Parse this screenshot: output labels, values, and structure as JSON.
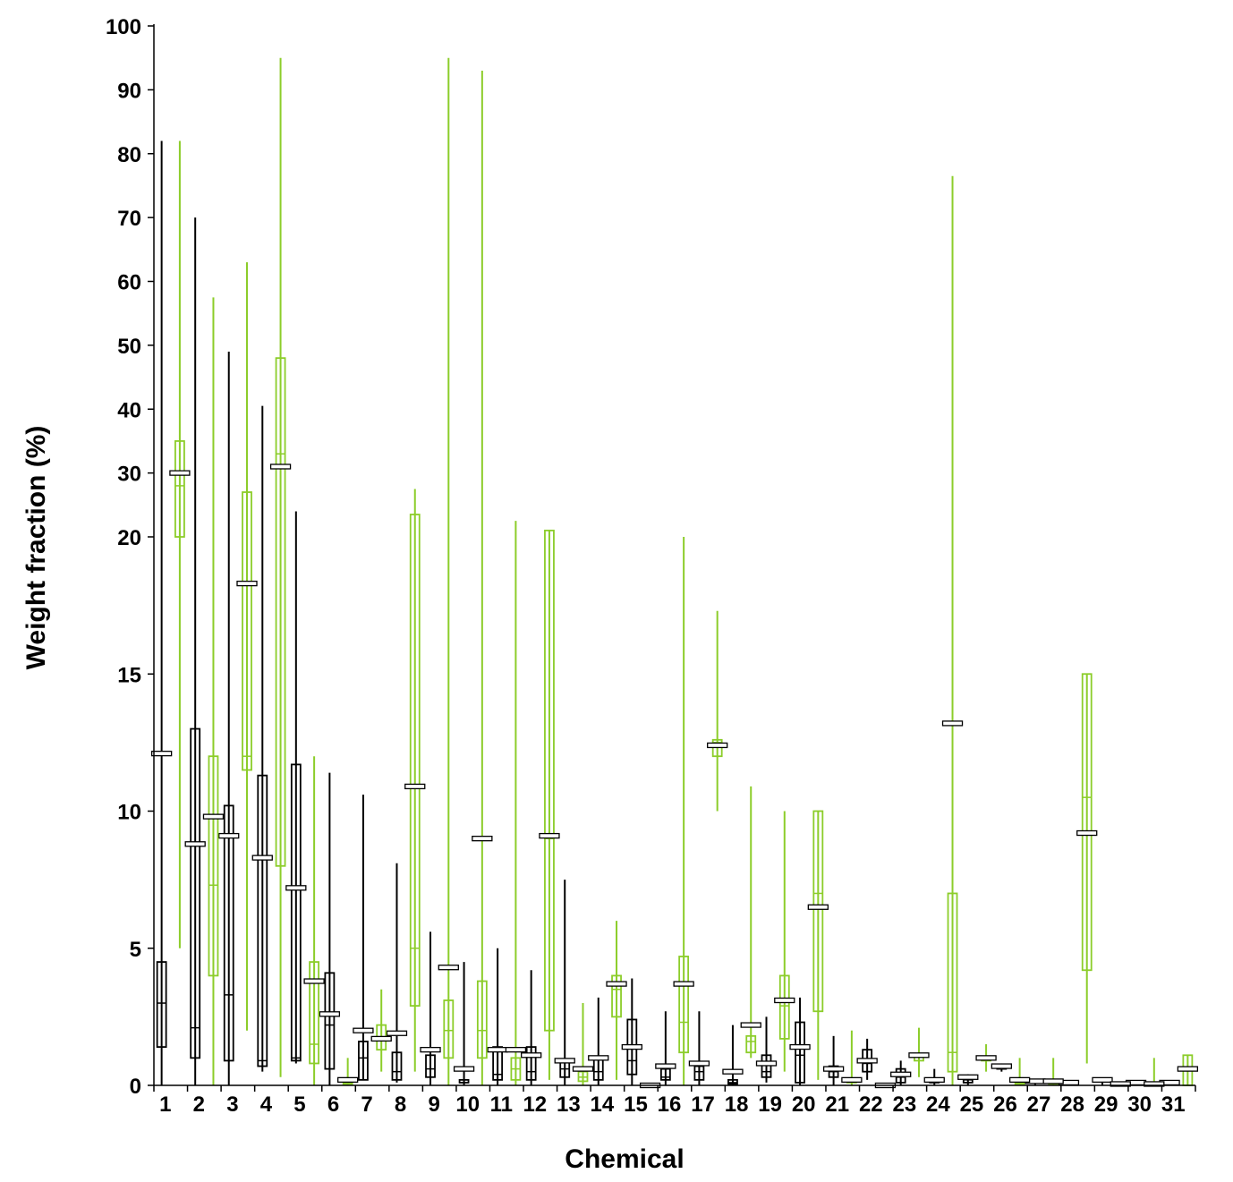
{
  "chart_data": {
    "type": "box",
    "title": "",
    "xlabel": "Chemical",
    "ylabel": "Weight fraction (%)",
    "y_scale": "broken: linear 0–20 below, linear 20–100 compressed above",
    "y_ticks": [
      0,
      5,
      10,
      15,
      20,
      30,
      40,
      50,
      60,
      70,
      80,
      90,
      100
    ],
    "ylim": [
      0,
      100
    ],
    "grid": false,
    "legend": "none",
    "categories": [
      "1",
      "2",
      "3",
      "4",
      "5",
      "6",
      "7",
      "8",
      "9",
      "10",
      "11",
      "12",
      "13",
      "14",
      "15",
      "16",
      "17",
      "18",
      "19",
      "20",
      "21",
      "22",
      "23",
      "24",
      "25",
      "26",
      "27",
      "28",
      "29",
      "30",
      "31"
    ],
    "colors": {
      "black_series": "#000000",
      "green_series": "#8ccd2a",
      "mean_marker_fill": "#ffffff"
    },
    "series": [
      {
        "color": "#000000",
        "boxes": [
          {
            "cat": "1",
            "min": 0,
            "q1": 1.4,
            "median": 3,
            "q3": 4.5,
            "max": 82,
            "mean": 12.1
          },
          {
            "cat": "2",
            "min": 0,
            "q1": 1,
            "median": 2.1,
            "q3": 13,
            "max": 70,
            "mean": 8.8
          },
          {
            "cat": "3",
            "min": 0,
            "q1": 0.9,
            "median": 3.3,
            "q3": 10.2,
            "max": 49,
            "mean": 9.1
          },
          {
            "cat": "4",
            "min": 0.5,
            "q1": 0.7,
            "median": 0.9,
            "q3": 11.3,
            "max": 40.5,
            "mean": 8.3
          },
          {
            "cat": "5",
            "min": 0.8,
            "q1": 0.9,
            "median": 1,
            "q3": 11.7,
            "max": 24,
            "mean": 7.2
          },
          {
            "cat": "6",
            "min": 0,
            "q1": 0.6,
            "median": 2.2,
            "q3": 4.1,
            "max": 11.4,
            "mean": 2.6
          },
          {
            "cat": "7",
            "min": 0.2,
            "q1": 0.2,
            "median": 1,
            "q3": 1.6,
            "max": 10.6,
            "mean": 2
          },
          {
            "cat": "8",
            "min": 0.1,
            "q1": 0.2,
            "median": 0.5,
            "q3": 1.2,
            "max": 8.1,
            "mean": 1.9
          },
          {
            "cat": "9",
            "min": 0,
            "q1": 0.3,
            "median": 0.6,
            "q3": 1.1,
            "max": 5.6,
            "mean": 1.3
          },
          {
            "cat": "10",
            "min": 0,
            "q1": 0.1,
            "median": 0.1,
            "q3": 0.2,
            "max": 4.5,
            "mean": 0.6
          },
          {
            "cat": "11",
            "min": 0,
            "q1": 0.2,
            "median": 0.4,
            "q3": 1.4,
            "max": 5,
            "mean": 1.3
          },
          {
            "cat": "12",
            "min": 0,
            "q1": 0.2,
            "median": 0.5,
            "q3": 1.4,
            "max": 4.2,
            "mean": 1.1
          },
          {
            "cat": "13",
            "min": 0,
            "q1": 0.3,
            "median": 0.6,
            "q3": 0.9,
            "max": 7.5,
            "mean": 0.9
          },
          {
            "cat": "14",
            "min": 0,
            "q1": 0.2,
            "median": 0.5,
            "q3": 1,
            "max": 3.2,
            "mean": 1
          },
          {
            "cat": "15",
            "min": 0,
            "q1": 0.4,
            "median": 0.9,
            "q3": 2.4,
            "max": 3.9,
            "mean": 1.4
          },
          {
            "cat": "16",
            "min": 0,
            "q1": 0.2,
            "median": 0.3,
            "q3": 0.6,
            "max": 2.7,
            "mean": 0.7
          },
          {
            "cat": "17",
            "min": 0,
            "q1": 0.2,
            "median": 0.5,
            "q3": 0.7,
            "max": 2.7,
            "mean": 0.8
          },
          {
            "cat": "18",
            "min": 0,
            "q1": 0.05,
            "median": 0.1,
            "q3": 0.2,
            "max": 2.2,
            "mean": 0.5
          },
          {
            "cat": "19",
            "min": 0.1,
            "q1": 0.3,
            "median": 0.5,
            "q3": 1.1,
            "max": 2.5,
            "mean": 0.8
          },
          {
            "cat": "20",
            "min": 0,
            "q1": 0.1,
            "median": 1.1,
            "q3": 2.3,
            "max": 3.2,
            "mean": 1.4
          },
          {
            "cat": "21",
            "min": 0,
            "q1": 0.3,
            "median": 0.5,
            "q3": 0.7,
            "max": 1.8,
            "mean": 0.6
          },
          {
            "cat": "22",
            "min": 0.2,
            "q1": 0.5,
            "median": 0.8,
            "q3": 1.3,
            "max": 1.7,
            "mean": 0.9
          },
          {
            "cat": "23",
            "min": 0,
            "q1": 0.1,
            "median": 0.3,
            "q3": 0.6,
            "max": 0.9,
            "mean": 0.4
          },
          {
            "cat": "24",
            "min": 0,
            "q1": 0.1,
            "median": 0.15,
            "q3": 0.2,
            "max": 0.6,
            "mean": 0.2
          },
          {
            "cat": "25",
            "min": 0,
            "q1": 0.1,
            "median": 0.2,
            "q3": 0.3,
            "max": 0.4,
            "mean": 0.3
          },
          {
            "cat": "26",
            "min": 0.5,
            "q1": 0.6,
            "median": 0.65,
            "q3": 0.7,
            "max": 0.8,
            "mean": 0.7
          },
          {
            "cat": "27",
            "min": 0,
            "q1": 0.1,
            "median": 0.15,
            "q3": 0.2,
            "max": 0.2,
            "mean": 0.15
          },
          {
            "cat": "28",
            "min": 0,
            "q1": 0.05,
            "median": 0.1,
            "q3": 0.1,
            "max": 0.1,
            "mean": 0.1
          },
          {
            "cat": "29",
            "min": 0,
            "q1": 0.15,
            "median": 0.2,
            "q3": 0.2,
            "max": 0.25,
            "mean": 0.2
          },
          {
            "cat": "30",
            "min": 0,
            "q1": 0.05,
            "median": 0.1,
            "q3": 0.1,
            "max": 0.1,
            "mean": 0.1
          },
          {
            "cat": "31",
            "min": 0,
            "q1": 0.05,
            "median": 0.1,
            "q3": 0.1,
            "max": 0.1,
            "mean": 0.1
          }
        ]
      },
      {
        "color": "#8ccd2a",
        "boxes": [
          {
            "cat": "1",
            "min": 5,
            "q1": 20,
            "median": 28,
            "q3": 35,
            "max": 82,
            "mean": 30
          },
          {
            "cat": "2",
            "min": 0,
            "q1": 4,
            "median": 7.3,
            "q3": 12,
            "max": 57.5,
            "mean": 9.8
          },
          {
            "cat": "3",
            "min": 2,
            "q1": 11.5,
            "median": 12,
            "q3": 27,
            "max": 63,
            "mean": 18.3
          },
          {
            "cat": "4",
            "min": 0.3,
            "q1": 8,
            "median": 33,
            "q3": 48,
            "max": 95,
            "mean": 31
          },
          {
            "cat": "5",
            "min": 0,
            "q1": 0.8,
            "median": 1.5,
            "q3": 4.5,
            "max": 12,
            "mean": 3.8
          },
          {
            "cat": "6",
            "min": 0,
            "q1": 0.05,
            "median": 0.1,
            "q3": 0.2,
            "max": 1,
            "mean": 0.2
          },
          {
            "cat": "7",
            "min": 0.5,
            "q1": 1.3,
            "median": 1.7,
            "q3": 2.2,
            "max": 3.5,
            "mean": 1.7
          },
          {
            "cat": "8",
            "min": 0.5,
            "q1": 2.9,
            "median": 5,
            "q3": 23.5,
            "max": 27.5,
            "mean": 10.9
          },
          {
            "cat": "9",
            "min": 0,
            "q1": 1,
            "median": 2,
            "q3": 3.1,
            "max": 95,
            "mean": 4.3
          },
          {
            "cat": "10",
            "min": 0,
            "q1": 1,
            "median": 2,
            "q3": 3.8,
            "max": 93,
            "mean": 9
          },
          {
            "cat": "11",
            "min": 0,
            "q1": 0.2,
            "median": 0.6,
            "q3": 1,
            "max": 22.5,
            "mean": 1.3
          },
          {
            "cat": "12",
            "min": 0.2,
            "q1": 2,
            "median": 9,
            "q3": 21,
            "max": 21,
            "mean": 9.1
          },
          {
            "cat": "13",
            "min": 0,
            "q1": 0.15,
            "median": 0.3,
            "q3": 0.5,
            "max": 3,
            "mean": 0.6
          },
          {
            "cat": "14",
            "min": 0.2,
            "q1": 2.5,
            "median": 3.5,
            "q3": 4,
            "max": 6,
            "mean": 3.7
          },
          {
            "cat": "15",
            "min": 0,
            "q1": 0,
            "median": 0,
            "q3": 0.05,
            "max": 0.05,
            "mean": 0
          },
          {
            "cat": "16",
            "min": 0,
            "q1": 1.2,
            "median": 2.3,
            "q3": 4.7,
            "max": 20,
            "mean": 3.7
          },
          {
            "cat": "17",
            "min": 10,
            "q1": 12,
            "median": 12.5,
            "q3": 12.6,
            "max": 17.3,
            "mean": 12.4
          },
          {
            "cat": "18",
            "min": 1,
            "q1": 1.2,
            "median": 1.6,
            "q3": 1.8,
            "max": 10.9,
            "mean": 2.2
          },
          {
            "cat": "19",
            "min": 0.5,
            "q1": 1.7,
            "median": 2.9,
            "q3": 4,
            "max": 10,
            "mean": 3.1
          },
          {
            "cat": "20",
            "min": 0.2,
            "q1": 2.7,
            "median": 7,
            "q3": 10,
            "max": 10,
            "mean": 6.5
          },
          {
            "cat": "21",
            "min": 0,
            "q1": 0.1,
            "median": 0.15,
            "q3": 0.2,
            "max": 2,
            "mean": 0.2
          },
          {
            "cat": "22",
            "min": 0,
            "q1": 0,
            "median": 0,
            "q3": 0.05,
            "max": 0.05,
            "mean": 0
          },
          {
            "cat": "23",
            "min": 0.3,
            "q1": 0.9,
            "median": 1.1,
            "q3": 1.1,
            "max": 2.1,
            "mean": 1.1
          },
          {
            "cat": "24",
            "min": 0,
            "q1": 0.5,
            "median": 1.2,
            "q3": 7,
            "max": 76.5,
            "mean": 13.2
          },
          {
            "cat": "25",
            "min": 0.5,
            "q1": 0.9,
            "median": 1,
            "q3": 1,
            "max": 1.5,
            "mean": 1
          },
          {
            "cat": "26",
            "min": 0,
            "q1": 0.05,
            "median": 0.1,
            "q3": 0.2,
            "max": 1,
            "mean": 0.2
          },
          {
            "cat": "27",
            "min": 0,
            "q1": 0.05,
            "median": 0.1,
            "q3": 0.2,
            "max": 1,
            "mean": 0.15
          },
          {
            "cat": "28",
            "min": 0.8,
            "q1": 4.2,
            "median": 10.5,
            "q3": 15,
            "max": 15,
            "mean": 9.2
          },
          {
            "cat": "29",
            "min": 0,
            "q1": 0,
            "median": 0.05,
            "q3": 0.05,
            "max": 0.05,
            "mean": 0.05
          },
          {
            "cat": "30",
            "min": 0,
            "q1": 0,
            "median": 0.05,
            "q3": 0.05,
            "max": 1,
            "mean": 0.05
          },
          {
            "cat": "31",
            "min": 0,
            "q1": 0,
            "median": 0.6,
            "q3": 1.1,
            "max": 1.1,
            "mean": 0.6
          }
        ]
      }
    ]
  }
}
